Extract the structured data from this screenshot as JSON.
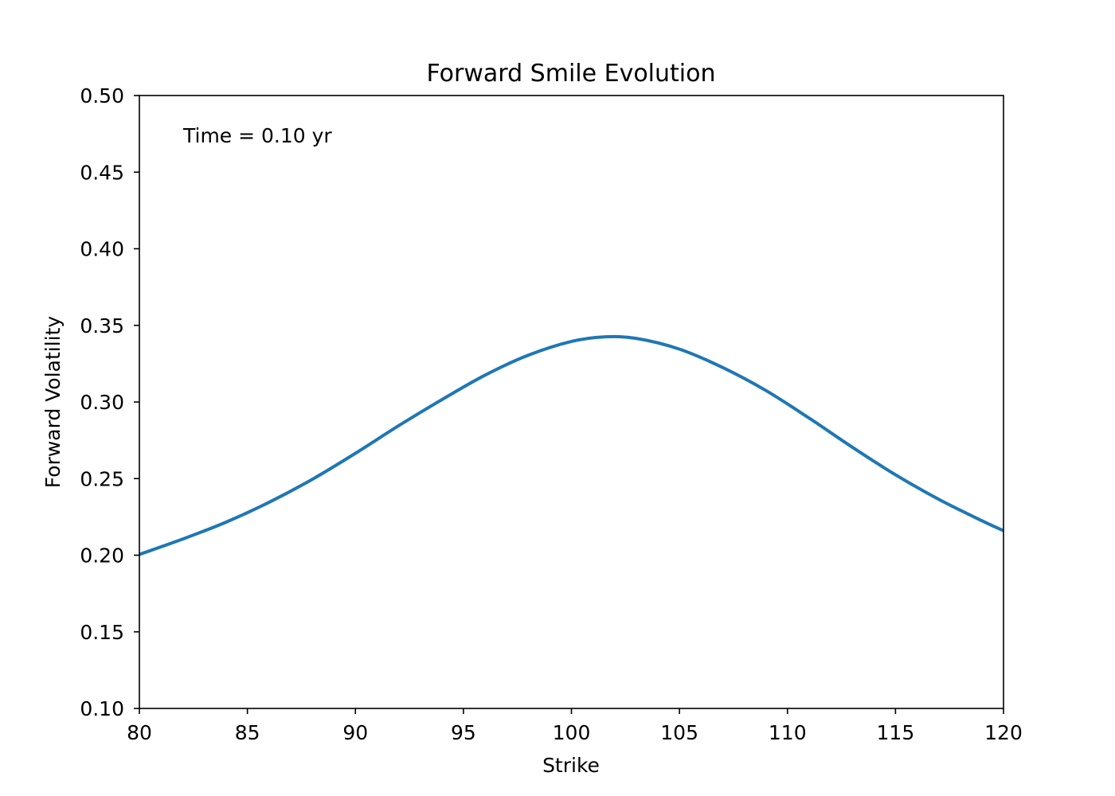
{
  "chart_data": {
    "type": "line",
    "title": "Forward Smile Evolution",
    "xlabel": "Strike",
    "ylabel": "Forward Volatility",
    "xlim": [
      80,
      120
    ],
    "ylim": [
      0.1,
      0.5
    ],
    "xticks": [
      "80",
      "85",
      "90",
      "95",
      "100",
      "105",
      "110",
      "115",
      "120"
    ],
    "yticks": [
      "0.10",
      "0.15",
      "0.20",
      "0.25",
      "0.30",
      "0.35",
      "0.40",
      "0.45",
      "0.50"
    ],
    "grid": false,
    "annotation": "Time = 0.10 yr",
    "series_color": "#1f77b4",
    "series": [
      {
        "x": [
          80,
          82,
          84,
          86,
          88,
          90,
          92,
          94,
          96,
          98,
          100,
          101.5,
          103,
          105,
          107,
          109,
          111,
          113,
          115,
          117,
          119,
          120
        ],
        "y": [
          0.2005,
          0.2105,
          0.2215,
          0.2345,
          0.2495,
          0.2665,
          0.2845,
          0.3015,
          0.3175,
          0.3305,
          0.3395,
          0.3425,
          0.3415,
          0.3345,
          0.3225,
          0.3075,
          0.2895,
          0.2705,
          0.2525,
          0.2365,
          0.2225,
          0.216
        ]
      }
    ]
  }
}
